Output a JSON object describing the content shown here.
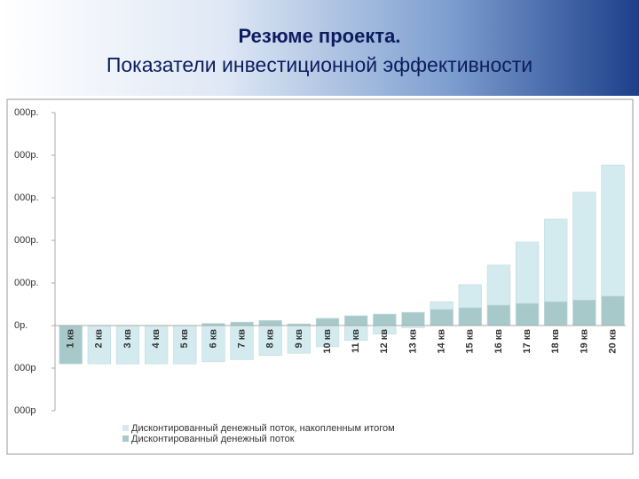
{
  "header": {
    "title": "Резюме проекта.",
    "subtitle": "Показатели инвестиционной эффективности"
  },
  "chart_data": {
    "type": "bar",
    "categories": [
      "1 кв",
      "2 кв",
      "3 кв",
      "4 кв",
      "5 кв",
      "6 кв",
      "7 кв",
      "8 кв",
      "9 кв",
      "10 кв",
      "11 кв",
      "12 кв",
      "13 кв",
      "14 кв",
      "15 кв",
      "16 кв",
      "17 кв",
      "18 кв",
      "19 кв",
      "20 кв"
    ],
    "series": [
      {
        "name": "Дисконтированный денежный поток, накопленным итогом",
        "color": "#d3ebee",
        "values": [
          -0.9,
          -0.9,
          -0.9,
          -0.9,
          -0.9,
          -0.85,
          -0.8,
          -0.7,
          -0.65,
          -0.5,
          -0.35,
          -0.2,
          -0.05,
          0.56,
          0.96,
          1.42,
          1.96,
          2.5,
          3.13,
          3.77
        ]
      },
      {
        "name": "Дисконтированный денежный поток",
        "color": "#a7c9c9",
        "values": [
          -0.9,
          0,
          0,
          0,
          0,
          0.05,
          0.08,
          0.12,
          0.04,
          0.17,
          0.23,
          0.27,
          0.31,
          0.38,
          0.42,
          0.48,
          0.52,
          0.56,
          0.6,
          0.69
        ]
      }
    ],
    "ylim": [
      -2,
      5
    ],
    "yticks": [
      {
        "value": 5,
        "label": "000р."
      },
      {
        "value": 4,
        "label": "000р."
      },
      {
        "value": 3,
        "label": "000р."
      },
      {
        "value": 2,
        "label": "000р."
      },
      {
        "value": 1,
        "label": "000р."
      },
      {
        "value": 0,
        "label": "0р."
      },
      {
        "value": -1,
        "label": "000р"
      },
      {
        "value": -2,
        "label": "000р"
      }
    ],
    "grid": false,
    "legend": "bottom"
  }
}
